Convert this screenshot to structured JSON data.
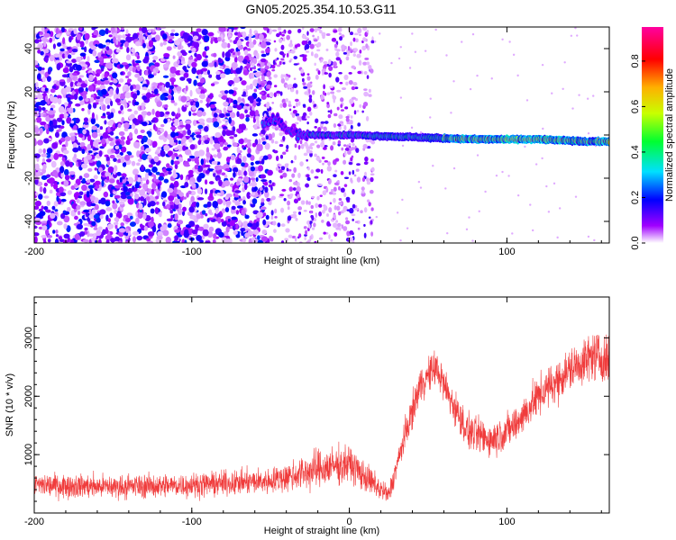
{
  "title": "GN05.2025.354.10.53.G11",
  "chart_data": [
    {
      "type": "heatmap",
      "xlabel": "Height of straight line (km)",
      "ylabel": "Frequency (Hz)",
      "xlim": [
        -200,
        165
      ],
      "ylim": [
        -50,
        50
      ],
      "xticks": [
        -200,
        -100,
        0,
        100
      ],
      "xtick_labels": [
        "-200",
        "-100",
        "0",
        "100"
      ],
      "yticks": [
        -40,
        -20,
        0,
        20,
        40
      ],
      "ytick_labels": [
        "-40",
        "-20",
        "0",
        "20",
        "40"
      ],
      "colorbar": {
        "label": "Normalized spectral amplitude",
        "range": [
          0,
          0.95
        ],
        "ticks": [
          0,
          0.2,
          0.4,
          0.6,
          0.8
        ],
        "tick_labels": [
          "0.0",
          "0.2",
          "0.4",
          "0.6",
          "0.8"
        ],
        "colormap": "rainbow"
      },
      "features": {
        "noise_region_x": [
          -200,
          -50
        ],
        "transition_region_x": [
          -50,
          15
        ],
        "sparse_noise_x": [
          15,
          80
        ],
        "carrier_line": [
          {
            "x": -55,
            "y": 5
          },
          {
            "x": -45,
            "y": 8
          },
          {
            "x": -40,
            "y": 2
          },
          {
            "x": -30,
            "y": 0
          },
          {
            "x": -20,
            "y": 0
          },
          {
            "x": 0,
            "y": 0
          },
          {
            "x": 40,
            "y": -1
          },
          {
            "x": 80,
            "y": -2
          },
          {
            "x": 120,
            "y": -2
          },
          {
            "x": 150,
            "y": -3
          },
          {
            "x": 165,
            "y": -3
          }
        ]
      }
    },
    {
      "type": "line",
      "xlabel": "Height of straight line (km)",
      "ylabel": "SNR (10 * v/v)",
      "xlim": [
        -200,
        165
      ],
      "ylim": [
        0,
        3700
      ],
      "xticks": [
        -200,
        -100,
        0,
        100
      ],
      "xtick_labels": [
        "-200",
        "-100",
        "0",
        "100"
      ],
      "yticks": [
        1000,
        2000,
        3000
      ],
      "ytick_labels": [
        "1000",
        "2000",
        "3000"
      ],
      "series": [
        {
          "color": "#f03c3c",
          "envelope": [
            {
              "x": -200,
              "mean": 480,
              "noise": 300
            },
            {
              "x": -150,
              "mean": 450,
              "noise": 300
            },
            {
              "x": -100,
              "mean": 480,
              "noise": 300
            },
            {
              "x": -50,
              "mean": 550,
              "noise": 320
            },
            {
              "x": -20,
              "mean": 750,
              "noise": 500
            },
            {
              "x": 0,
              "mean": 850,
              "noise": 450
            },
            {
              "x": 15,
              "mean": 500,
              "noise": 350
            },
            {
              "x": 25,
              "mean": 300,
              "noise": 250
            },
            {
              "x": 35,
              "mean": 1300,
              "noise": 400
            },
            {
              "x": 45,
              "mean": 2200,
              "noise": 450
            },
            {
              "x": 55,
              "mean": 2500,
              "noise": 450
            },
            {
              "x": 65,
              "mean": 1900,
              "noise": 450
            },
            {
              "x": 75,
              "mean": 1400,
              "noise": 450
            },
            {
              "x": 90,
              "mean": 1250,
              "noise": 450
            },
            {
              "x": 105,
              "mean": 1500,
              "noise": 450
            },
            {
              "x": 120,
              "mean": 2000,
              "noise": 500
            },
            {
              "x": 140,
              "mean": 2450,
              "noise": 550
            },
            {
              "x": 155,
              "mean": 2700,
              "noise": 600
            },
            {
              "x": 165,
              "mean": 2600,
              "noise": 600
            }
          ]
        }
      ]
    }
  ]
}
